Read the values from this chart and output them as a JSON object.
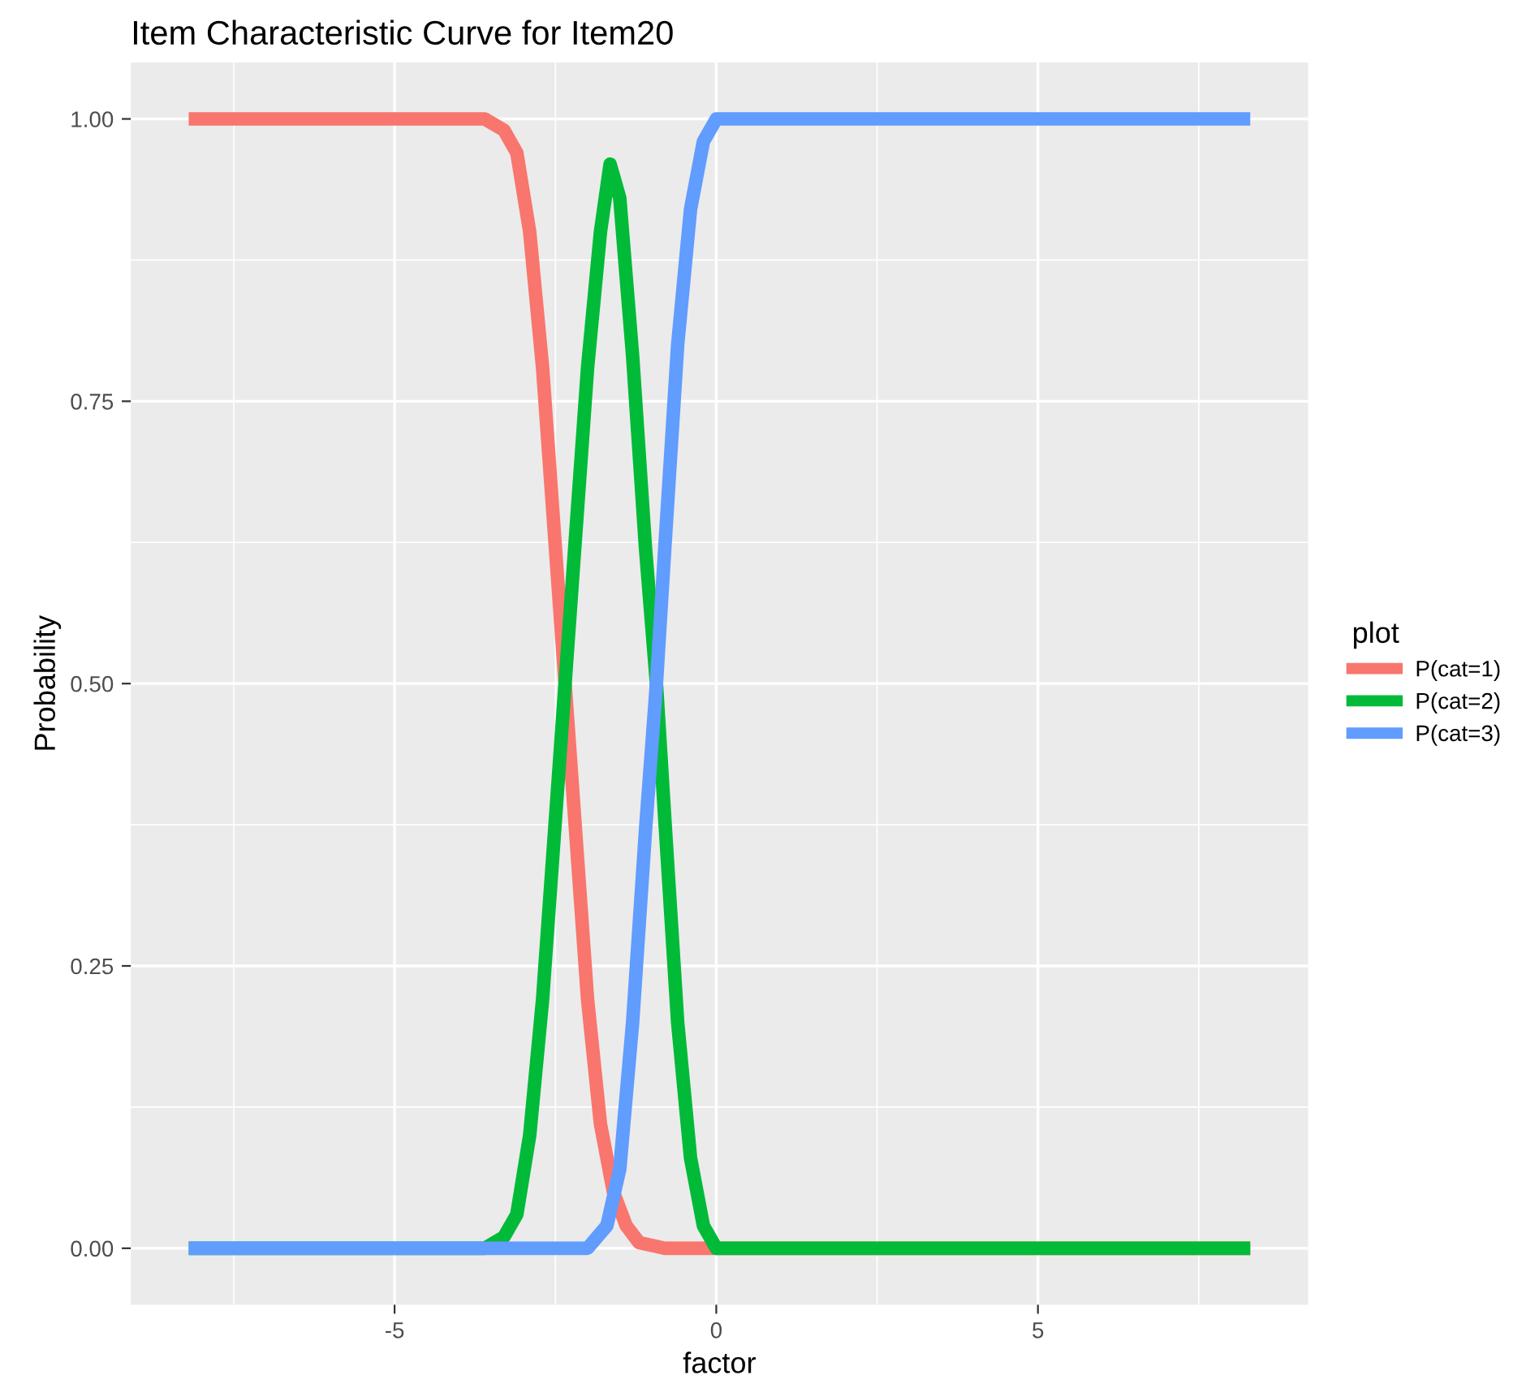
{
  "chart_data": {
    "type": "line",
    "title": "Item Characteristic Curve for Item20",
    "xlabel": "factor",
    "ylabel": "Probability",
    "legend_title": "plot",
    "legend": "right",
    "xlim": [
      -9.1,
      9.2
    ],
    "ylim": [
      -0.05,
      1.05
    ],
    "xticks": [
      -5,
      0,
      5
    ],
    "yticks": [
      {
        "value": 0,
        "label": "0.00"
      },
      {
        "value": 0.25,
        "label": "0.25"
      },
      {
        "value": 0.5,
        "label": "0.50"
      },
      {
        "value": 0.75,
        "label": "0.75"
      },
      {
        "value": 1,
        "label": "1.00"
      }
    ],
    "grid": true,
    "line_style": "solid",
    "series": [
      {
        "name": "P(cat=1)",
        "color": "#f8766d",
        "x": [
          -8.2,
          -3.6,
          -3.3,
          -3.1,
          -2.9,
          -2.7,
          -2.5,
          -2.35,
          -2.2,
          -2.0,
          -1.8,
          -1.6,
          -1.4,
          -1.2,
          -0.8,
          8.3
        ],
        "values": [
          1,
          1,
          0.99,
          0.97,
          0.9,
          0.78,
          0.62,
          0.5,
          0.38,
          0.22,
          0.11,
          0.05,
          0.02,
          0.005,
          0,
          0
        ]
      },
      {
        "name": "P(cat=2)",
        "color": "#00ba38",
        "x": [
          -8.2,
          -3.6,
          -3.3,
          -3.1,
          -2.9,
          -2.7,
          -2.5,
          -2.35,
          -2.2,
          -2.0,
          -1.8,
          -1.65,
          -1.5,
          -1.3,
          -1.1,
          -0.93,
          -0.8,
          -0.6,
          -0.4,
          -0.2,
          0,
          8.3
        ],
        "values": [
          0,
          0,
          0.01,
          0.03,
          0.1,
          0.22,
          0.38,
          0.5,
          0.62,
          0.78,
          0.9,
          0.96,
          0.93,
          0.79,
          0.62,
          0.5,
          0.38,
          0.2,
          0.08,
          0.02,
          0,
          0
        ]
      },
      {
        "name": "P(cat=3)",
        "color": "#619cff",
        "x": [
          -8.2,
          -2.0,
          -1.7,
          -1.5,
          -1.3,
          -1.1,
          -0.93,
          -0.8,
          -0.6,
          -0.4,
          -0.2,
          0,
          8.3
        ],
        "values": [
          0,
          0,
          0.02,
          0.07,
          0.2,
          0.37,
          0.5,
          0.62,
          0.8,
          0.92,
          0.98,
          1,
          1
        ]
      }
    ]
  }
}
